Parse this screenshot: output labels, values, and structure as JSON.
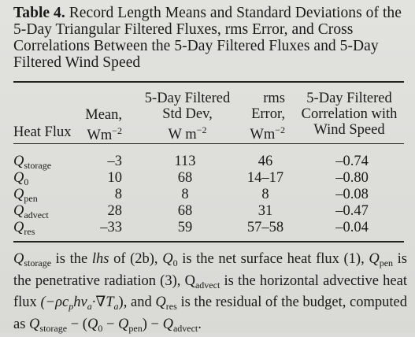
{
  "caption": {
    "label": "Table 4.",
    "text": "Record Length Means and Standard Deviations of the 5-Day Triangular Filtered Fluxes, rms Error, and Cross Correlations Between the 5-Day Filtered Fluxes and 5-Day Filtered Wind Speed"
  },
  "headers": {
    "heat_flux": "Heat Flux",
    "mean_line1": "Mean,",
    "mean_unit": "Wm",
    "std_line1": "5-Day Filtered",
    "std_line2": "Std Dev,",
    "std_unit": "W m",
    "rms_line1": "rms",
    "rms_line2": "Error,",
    "rms_unit": "Wm",
    "corr_line1": "5-Day Filtered",
    "corr_line2": "Correlation with",
    "corr_line3": "Wind Speed",
    "unit_exponent": "−2"
  },
  "rows": [
    {
      "symbol": "Q",
      "subscript": "storage",
      "mean": "–3",
      "std": "113",
      "rms": "46",
      "corr": "–0.74"
    },
    {
      "symbol": "Q",
      "subscript": "0",
      "mean": "10",
      "std": "68",
      "rms": "14–17",
      "corr": "–0.80"
    },
    {
      "symbol": "Q",
      "subscript": "pen",
      "mean": "8",
      "std": "8",
      "rms": "8",
      "corr": "–0.08"
    },
    {
      "symbol": "Q",
      "subscript": "advect",
      "mean": "28",
      "std": "68",
      "rms": "31",
      "corr": "–0.47"
    },
    {
      "symbol": "Q",
      "subscript": "res",
      "mean": "–33",
      "std": "59",
      "rms": "57–58",
      "corr": "–0.04"
    }
  ],
  "note": {
    "q": "Q",
    "storage": "storage",
    "is_the": " is the ",
    "lhs": "lhs",
    "of_2b": " of (2b), ",
    "zero": "0",
    "net": " is the net surface heat flux (1), ",
    "pen": "pen",
    "penetrative": " is the penetrative radiation (3), Q",
    "advect": "advect",
    "advective": " is the horizontal advective heat flux ",
    "formula": "(−ρc",
    "formula_p": "p",
    "formula_mid": "hv",
    "formula_a": "a",
    "formula_dot": "·∇T",
    "formula_a2": "a",
    "formula_end": ")",
    "and": ", and ",
    "res": "res",
    "residual": " is the residual of the budget, computed as ",
    "minus_open": " − (",
    "minus": " − ",
    "close_minus": ") − ",
    "end": "."
  }
}
